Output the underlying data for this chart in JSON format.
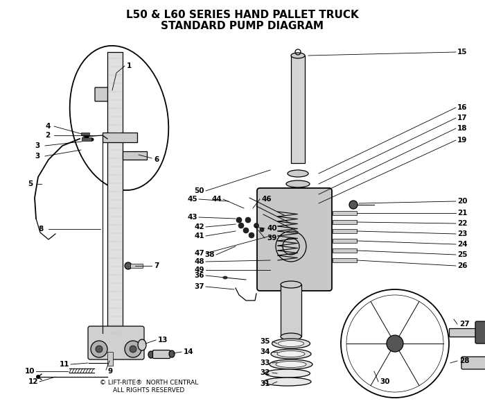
{
  "title_line1": "L50 & L60 SERIES HAND PALLET TRUCK",
  "title_line2": "STANDARD PUMP DIAGRAM",
  "copyright": "© LIFT-RITE®  NORTH CENTRAL\nALL RIGHTS RESERVED",
  "bg_color": "#ffffff",
  "fg_color": "#000000",
  "title_fontsize": 11,
  "annot_fontsize": 7.5,
  "copy_fontsize": 6.5
}
